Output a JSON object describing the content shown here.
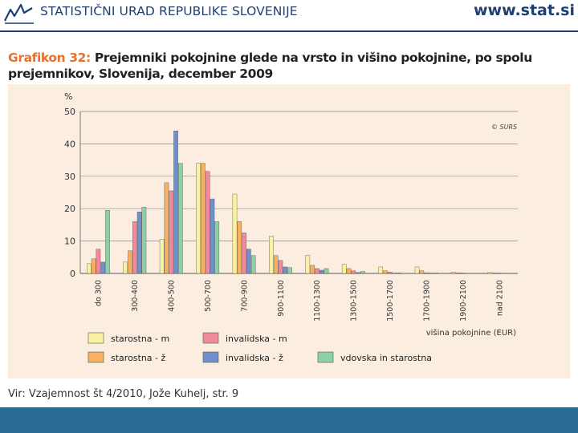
{
  "header": {
    "org_name": "STATISTIČNI URAD REPUBLIKE SLOVENIJE",
    "website": "www.stat.si",
    "brand_color": "#1f3f73"
  },
  "title": {
    "label": "Grafikon 32:",
    "text": "Prejemniki pokojnine glede na vrsto in višino pokojnine, po spolu prejemnikov, Slovenija, december 2009"
  },
  "source": "Vir: Vzajemnost št 4/2010, Jože Kuhelj, str. 9",
  "chart_data": {
    "type": "bar",
    "ylabel": "%",
    "xlabel": "višina pokojnine (EUR)",
    "copyright": "© SURS",
    "ylim": [
      0,
      50
    ],
    "yticks": [
      0,
      10,
      20,
      30,
      40,
      50
    ],
    "grid": true,
    "legend_position": "bottom",
    "categories": [
      "do 300",
      "300-400",
      "400-500",
      "500-700",
      "700-900",
      "900-1100",
      "1100-1300",
      "1300-1500",
      "1500-1700",
      "1700-1900",
      "1900-2100",
      "nad 2100"
    ],
    "series": [
      {
        "name": "starostna - m",
        "color": "#fbf1a3",
        "values": [
          3.0,
          3.5,
          10.5,
          34.0,
          24.5,
          11.5,
          5.5,
          2.8,
          2.0,
          2.0,
          0.4,
          0.3
        ]
      },
      {
        "name": "starostna - ž",
        "color": "#f7b160",
        "values": [
          4.5,
          7.0,
          28.0,
          34.0,
          16.0,
          5.5,
          2.5,
          1.5,
          0.8,
          0.8,
          0.2,
          0.1
        ]
      },
      {
        "name": "invalidska - m",
        "color": "#f08a9c",
        "values": [
          7.5,
          16.0,
          25.5,
          31.5,
          12.5,
          4.0,
          1.5,
          0.8,
          0.4,
          0.2,
          0.1,
          0.1
        ]
      },
      {
        "name": "invalidska - ž",
        "color": "#6f90cc",
        "values": [
          3.5,
          19.0,
          44.0,
          23.0,
          7.5,
          2.0,
          1.0,
          0.3,
          0.1,
          0.1,
          0.0,
          0.0
        ]
      },
      {
        "name": "vdovska in starostna",
        "color": "#8fcfa6",
        "values": [
          19.5,
          20.5,
          34.0,
          16.0,
          5.5,
          1.8,
          1.5,
          0.6,
          0.2,
          0.1,
          0.0,
          0.0
        ]
      }
    ]
  }
}
